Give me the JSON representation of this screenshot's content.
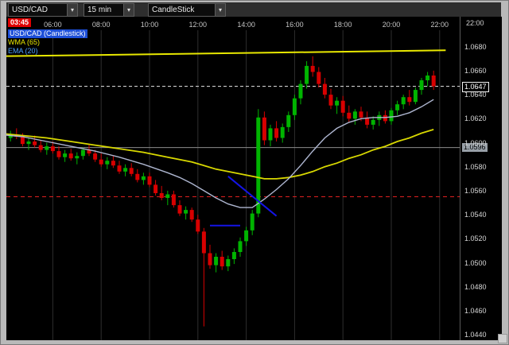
{
  "window": {
    "frame_color": "#b9b9b9"
  },
  "toolbar": {
    "symbol": {
      "value": "USD/CAD"
    },
    "interval": {
      "value": "15 min"
    },
    "chart_type": {
      "value": "CandleStick"
    }
  },
  "icons": {
    "chevron_down": "▾"
  },
  "badge": {
    "countdown": "03:45"
  },
  "legend": {
    "series": "USD/CAD (Candlestick)",
    "wma": "WMA (65)",
    "ema": "EMA (20)"
  },
  "axis": {
    "corner_time": "22:00",
    "current_price": "1.0647",
    "line_price": "1.0596",
    "price_ticks": [
      "1.0680",
      "1.0660",
      "1.0640",
      "1.0620",
      "1.0600",
      "1.0580",
      "1.0560",
      "1.0540",
      "1.0520",
      "1.0500",
      "1.0480",
      "1.0460",
      "1.0440"
    ]
  },
  "chart_data": {
    "type": "candlestick",
    "title": "USD/CAD (Candlestick)",
    "symbol": "USD/CAD",
    "interval": "15 min",
    "indicators": [
      "WMA (65)",
      "EMA (20)"
    ],
    "start_time": "03:45",
    "x_labels": [
      "06:00",
      "08:00",
      "10:00",
      "12:00",
      "14:00",
      "16:00",
      "18:00",
      "20:00",
      "22:00"
    ],
    "y_ticks": [
      1.068,
      1.066,
      1.064,
      1.062,
      1.06,
      1.058,
      1.056,
      1.054,
      1.052,
      1.05,
      1.048,
      1.046,
      1.044
    ],
    "ylim": [
      1.0436,
      1.0705
    ],
    "levels": {
      "current_price": 1.0647,
      "grey_line": 1.0596,
      "support_red": 1.0555
    },
    "colors": {
      "up": "#00b400",
      "down": "#d80000",
      "wma": "#d8d800",
      "ema": "#aeb6d0",
      "grid": "#2e2e2e"
    },
    "candles": [
      [
        "03:45",
        1.0605,
        1.0609,
        1.06,
        1.0602
      ],
      [
        "04:00",
        1.0602,
        1.0606,
        1.0598,
        1.0604
      ],
      [
        "04:15",
        1.0604,
        1.061,
        1.0601,
        1.0607
      ],
      [
        "04:30",
        1.0607,
        1.0612,
        1.0603,
        1.0605
      ],
      [
        "04:45",
        1.0605,
        1.0608,
        1.0597,
        1.0599
      ],
      [
        "05:00",
        1.0599,
        1.0604,
        1.0594,
        1.0601
      ],
      [
        "05:15",
        1.0601,
        1.0606,
        1.0596,
        1.0598
      ],
      [
        "05:30",
        1.0598,
        1.0602,
        1.0592,
        1.0594
      ],
      [
        "05:45",
        1.0594,
        1.06,
        1.059,
        1.0597
      ],
      [
        "06:00",
        1.0597,
        1.0601,
        1.0591,
        1.0593
      ],
      [
        "06:15",
        1.0593,
        1.0597,
        1.0586,
        1.0588
      ],
      [
        "06:30",
        1.0588,
        1.0594,
        1.0584,
        1.0591
      ],
      [
        "06:45",
        1.0591,
        1.0595,
        1.0585,
        1.0587
      ],
      [
        "07:00",
        1.0587,
        1.0592,
        1.0582,
        1.0589
      ],
      [
        "07:15",
        1.0589,
        1.0596,
        1.0586,
        1.0594
      ],
      [
        "07:30",
        1.0594,
        1.0599,
        1.0589,
        1.0591
      ],
      [
        "07:45",
        1.0591,
        1.0594,
        1.0584,
        1.0586
      ],
      [
        "08:00",
        1.0586,
        1.0591,
        1.058,
        1.0582
      ],
      [
        "08:15",
        1.0582,
        1.0588,
        1.0578,
        1.0585
      ],
      [
        "08:30",
        1.0585,
        1.0589,
        1.0579,
        1.0581
      ],
      [
        "08:45",
        1.0581,
        1.0585,
        1.0574,
        1.0576
      ],
      [
        "09:00",
        1.0576,
        1.0582,
        1.0572,
        1.0579
      ],
      [
        "09:15",
        1.0579,
        1.0583,
        1.0572,
        1.0574
      ],
      [
        "09:30",
        1.0574,
        1.0578,
        1.0567,
        1.0569
      ],
      [
        "09:45",
        1.0569,
        1.0575,
        1.0565,
        1.0572
      ],
      [
        "10:00",
        1.0572,
        1.0575,
        1.0563,
        1.0565
      ],
      [
        "10:15",
        1.0565,
        1.0569,
        1.0556,
        1.0558
      ],
      [
        "10:30",
        1.0558,
        1.0564,
        1.0552,
        1.0554
      ],
      [
        "10:45",
        1.0554,
        1.056,
        1.0548,
        1.0557
      ],
      [
        "11:00",
        1.0557,
        1.056,
        1.0546,
        1.0548
      ],
      [
        "11:15",
        1.0548,
        1.0552,
        1.0539,
        1.0541
      ],
      [
        "11:30",
        1.0541,
        1.0547,
        1.0536,
        1.0544
      ],
      [
        "11:45",
        1.0544,
        1.0546,
        1.0534,
        1.0536
      ],
      [
        "12:00",
        1.0536,
        1.054,
        1.0524,
        1.0526
      ],
      [
        "12:15",
        1.0526,
        1.0529,
        1.0447,
        1.0508
      ],
      [
        "12:30",
        1.0508,
        1.0515,
        1.0495,
        1.0498
      ],
      [
        "12:45",
        1.0498,
        1.0508,
        1.0492,
        1.0505
      ],
      [
        "13:00",
        1.0505,
        1.051,
        1.0494,
        1.0497
      ],
      [
        "13:15",
        1.0497,
        1.0506,
        1.0493,
        1.0503
      ],
      [
        "13:30",
        1.0503,
        1.0512,
        1.0499,
        1.0509
      ],
      [
        "13:45",
        1.0509,
        1.0521,
        1.0505,
        1.0518
      ],
      [
        "14:00",
        1.0518,
        1.053,
        1.0514,
        1.0527
      ],
      [
        "14:15",
        1.0527,
        1.0544,
        1.0523,
        1.0541
      ],
      [
        "14:30",
        1.0541,
        1.0628,
        1.0538,
        1.0621
      ],
      [
        "14:45",
        1.0621,
        1.0626,
        1.0598,
        1.0602
      ],
      [
        "15:00",
        1.0602,
        1.0615,
        1.0597,
        1.0612
      ],
      [
        "15:15",
        1.0612,
        1.0618,
        1.0601,
        1.0604
      ],
      [
        "15:30",
        1.0604,
        1.0616,
        1.06,
        1.0613
      ],
      [
        "15:45",
        1.0613,
        1.0626,
        1.0609,
        1.0623
      ],
      [
        "16:00",
        1.0623,
        1.064,
        1.0619,
        1.0637
      ],
      [
        "16:15",
        1.0637,
        1.0652,
        1.0632,
        1.0649
      ],
      [
        "16:30",
        1.0649,
        1.0668,
        1.0645,
        1.0664
      ],
      [
        "16:45",
        1.0664,
        1.0672,
        1.0655,
        1.0659
      ],
      [
        "17:00",
        1.0659,
        1.0663,
        1.0646,
        1.0649
      ],
      [
        "17:15",
        1.0649,
        1.0654,
        1.0637,
        1.064
      ],
      [
        "17:30",
        1.064,
        1.0645,
        1.0628,
        1.0631
      ],
      [
        "17:45",
        1.0631,
        1.0638,
        1.0624,
        1.0635
      ],
      [
        "18:00",
        1.0635,
        1.0639,
        1.0622,
        1.0625
      ],
      [
        "18:15",
        1.0625,
        1.0631,
        1.0617,
        1.062
      ],
      [
        "18:30",
        1.062,
        1.0628,
        1.0615,
        1.0626
      ],
      [
        "18:45",
        1.0626,
        1.063,
        1.0618,
        1.0621
      ],
      [
        "19:00",
        1.0621,
        1.0626,
        1.0612,
        1.0615
      ],
      [
        "19:15",
        1.0615,
        1.0622,
        1.0611,
        1.0619
      ],
      [
        "19:30",
        1.0619,
        1.0626,
        1.0614,
        1.0623
      ],
      [
        "19:45",
        1.0623,
        1.0627,
        1.0616,
        1.0618
      ],
      [
        "20:00",
        1.0618,
        1.0629,
        1.0615,
        1.0627
      ],
      [
        "20:15",
        1.0627,
        1.0635,
        1.0623,
        1.0632
      ],
      [
        "20:30",
        1.0632,
        1.064,
        1.0628,
        1.0638
      ],
      [
        "20:45",
        1.0638,
        1.0644,
        1.0631,
        1.0634
      ],
      [
        "21:00",
        1.0634,
        1.0646,
        1.0632,
        1.0644
      ],
      [
        "21:15",
        1.0644,
        1.0654,
        1.064,
        1.0652
      ],
      [
        "21:30",
        1.0652,
        1.0659,
        1.0647,
        1.0656
      ],
      [
        "21:45",
        1.0656,
        1.066,
        1.0644,
        1.0647
      ]
    ],
    "wma_65": [
      [
        0,
        1.0608
      ],
      [
        4,
        1.0606
      ],
      [
        8,
        1.0604
      ],
      [
        12,
        1.0601
      ],
      [
        16,
        1.0598
      ],
      [
        20,
        1.0595
      ],
      [
        24,
        1.0592
      ],
      [
        28,
        1.0588
      ],
      [
        32,
        1.0584
      ],
      [
        34,
        1.0581
      ],
      [
        36,
        1.0578
      ],
      [
        38,
        1.0576
      ],
      [
        40,
        1.0574
      ],
      [
        42,
        1.0572
      ],
      [
        44,
        1.057
      ],
      [
        46,
        1.057
      ],
      [
        48,
        1.0571
      ],
      [
        50,
        1.0573
      ],
      [
        52,
        1.0576
      ],
      [
        54,
        1.058
      ],
      [
        56,
        1.0583
      ],
      [
        58,
        1.0587
      ],
      [
        60,
        1.059
      ],
      [
        62,
        1.0594
      ],
      [
        64,
        1.0597
      ],
      [
        66,
        1.0601
      ],
      [
        68,
        1.0604
      ],
      [
        70,
        1.0608
      ],
      [
        72,
        1.0611
      ]
    ],
    "ema_20": [
      [
        0,
        1.0607
      ],
      [
        4,
        1.0605
      ],
      [
        8,
        1.0601
      ],
      [
        12,
        1.0597
      ],
      [
        16,
        1.0593
      ],
      [
        20,
        1.0588
      ],
      [
        24,
        1.0582
      ],
      [
        28,
        1.0575
      ],
      [
        30,
        1.0571
      ],
      [
        32,
        1.0566
      ],
      [
        34,
        1.056
      ],
      [
        36,
        1.0554
      ],
      [
        38,
        1.0549
      ],
      [
        40,
        1.0546
      ],
      [
        42,
        1.0546
      ],
      [
        44,
        1.0553
      ],
      [
        46,
        1.0561
      ],
      [
        48,
        1.057
      ],
      [
        50,
        1.0581
      ],
      [
        52,
        1.0593
      ],
      [
        54,
        1.0604
      ],
      [
        56,
        1.0612
      ],
      [
        58,
        1.0617
      ],
      [
        60,
        1.062
      ],
      [
        62,
        1.0621
      ],
      [
        64,
        1.0621
      ],
      [
        66,
        1.0622
      ],
      [
        68,
        1.0625
      ],
      [
        70,
        1.063
      ],
      [
        72,
        1.0636
      ]
    ],
    "trendlines": [
      {
        "name": "upper-resistance",
        "color": "#e8e800",
        "p1": {
          "i": 0,
          "v": 1.0672
        },
        "p2": {
          "i": 74,
          "v": 1.0677
        }
      },
      {
        "name": "blue-diagonal",
        "color": "#1414e6",
        "p1": {
          "i": 38,
          "v": 1.0572
        },
        "p2": {
          "i": 46,
          "v": 1.0539
        }
      },
      {
        "name": "blue-horizontal",
        "color": "#1414e6",
        "p1": {
          "i": 35,
          "v": 1.0531
        },
        "p2": {
          "i": 40,
          "v": 1.0531
        }
      }
    ]
  }
}
